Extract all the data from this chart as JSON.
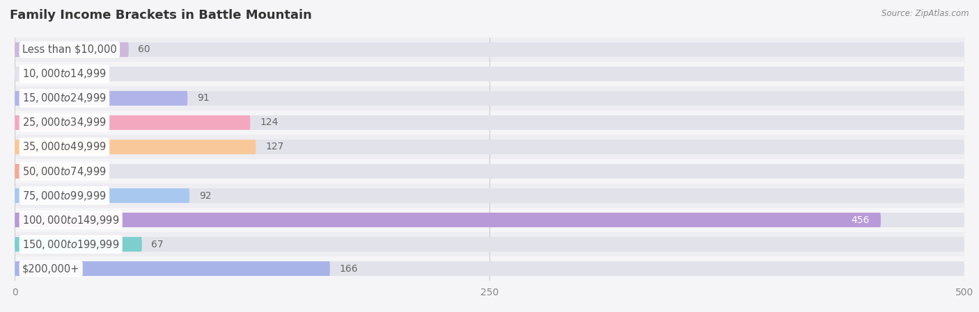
{
  "title": "Family Income Brackets in Battle Mountain",
  "source": "Source: ZipAtlas.com",
  "categories": [
    "Less than $10,000",
    "$10,000 to $14,999",
    "$15,000 to $24,999",
    "$25,000 to $34,999",
    "$35,000 to $49,999",
    "$50,000 to $74,999",
    "$75,000 to $99,999",
    "$100,000 to $149,999",
    "$150,000 to $199,999",
    "$200,000+"
  ],
  "values": [
    60,
    0,
    91,
    124,
    127,
    19,
    92,
    456,
    67,
    166
  ],
  "bar_colors": [
    "#cdb8dc",
    "#7ecece",
    "#b0b4e8",
    "#f4a8c0",
    "#f8c89a",
    "#f4a898",
    "#a8c8f0",
    "#b89ad8",
    "#7ecece",
    "#a8b4e8"
  ],
  "bar_bg_color": "#e2e2ea",
  "background_color": "#f5f5f7",
  "row_bg_even": "#ededf2",
  "row_bg_odd": "#f5f5f7",
  "xlim": [
    0,
    500
  ],
  "xticks": [
    0,
    250,
    500
  ],
  "label_fontsize": 10.5,
  "title_fontsize": 13,
  "value_label_fontsize": 10,
  "bar_height": 0.6,
  "label_text_color": "#555555",
  "value_text_color": "#666666",
  "value_inside_color": "#ffffff",
  "grid_color": "#cccccc",
  "title_color": "#333333"
}
